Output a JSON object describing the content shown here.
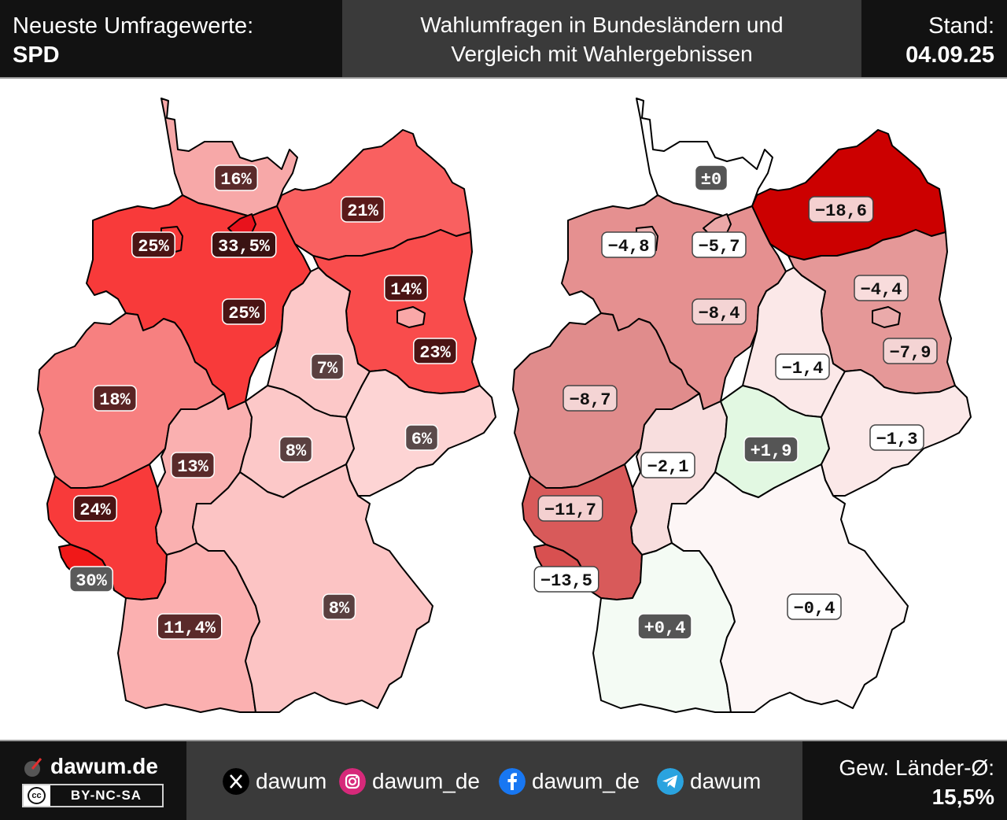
{
  "header": {
    "left_line1": "Neueste Umfragewerte:",
    "left_line2": "SPD",
    "center_line1": "Wahlumfragen in Bundesländern und",
    "center_line2": "Vergleich mit Wahlergebnissen",
    "right_line1": "Stand:",
    "right_line2": "04.09.25"
  },
  "left_map": {
    "states": [
      {
        "id": "SH",
        "label": "16%",
        "fill": "#f7a8a8",
        "badge": "#5a2a2a",
        "text": "#ffffff"
      },
      {
        "id": "HH",
        "label": "33,5%",
        "fill": "#e8121c",
        "badge": "#3a1212",
        "text": "#ffffff"
      },
      {
        "id": "MV",
        "label": "21%",
        "fill": "#f96060",
        "badge": "#5a1a1a",
        "text": "#ffffff"
      },
      {
        "id": "HB",
        "label": "25%",
        "fill": "#f83a3a",
        "badge": "#4a1414",
        "text": "#ffffff"
      },
      {
        "id": "NI",
        "label": "25%",
        "fill": "#f83a3a",
        "badge": "#4a1414",
        "text": "#ffffff"
      },
      {
        "id": "BB",
        "label": "23%",
        "fill": "#f94c4c",
        "badge": "#4a1414",
        "text": "#ffffff"
      },
      {
        "id": "BE",
        "label": "14%",
        "fill": "#f9a8a8",
        "badge": "#4a1414",
        "text": "#ffffff"
      },
      {
        "id": "ST",
        "label": "7%",
        "fill": "#fcc8c8",
        "badge": "#5a4040",
        "text": "#ffffff"
      },
      {
        "id": "NW",
        "label": "18%",
        "fill": "#f78080",
        "badge": "#5a2424",
        "text": "#ffffff"
      },
      {
        "id": "HE",
        "label": "13%",
        "fill": "#fab0b0",
        "badge": "#5a2a2a",
        "text": "#ffffff"
      },
      {
        "id": "TH",
        "label": "8%",
        "fill": "#fcc8c8",
        "badge": "#5a4040",
        "text": "#ffffff"
      },
      {
        "id": "SN",
        "label": "6%",
        "fill": "#fdd4d4",
        "badge": "#5a4a4a",
        "text": "#ffffff"
      },
      {
        "id": "RP",
        "label": "24%",
        "fill": "#f83a3a",
        "badge": "#4a1414",
        "text": "#ffffff"
      },
      {
        "id": "SL",
        "label": "30%",
        "fill": "#f01818",
        "badge": "#5a5a5a",
        "text": "#ffffff"
      },
      {
        "id": "BW",
        "label": "11,4%",
        "fill": "#fbb0b0",
        "badge": "#5a2a2a",
        "text": "#ffffff"
      },
      {
        "id": "BY",
        "label": "8%",
        "fill": "#fcc4c4",
        "badge": "#5a4040",
        "text": "#ffffff"
      }
    ]
  },
  "right_map": {
    "states": [
      {
        "id": "SH",
        "label": "±0",
        "fill": "#ffffff",
        "badge": "#555555",
        "text": "#ffffff"
      },
      {
        "id": "HH",
        "label": "−5,7",
        "fill": "#eba8a8",
        "badge": "#ffffff",
        "text": "#111111"
      },
      {
        "id": "MV",
        "label": "−18,6",
        "fill": "#cc0000",
        "badge": "#f4d0d0",
        "text": "#111111"
      },
      {
        "id": "HB",
        "label": "−4,8",
        "fill": "#ebb0b0",
        "badge": "#ffffff",
        "text": "#111111"
      },
      {
        "id": "NI",
        "label": "−8,4",
        "fill": "#e59090",
        "badge": "#f4d4d4",
        "text": "#111111"
      },
      {
        "id": "BB",
        "label": "−7,9",
        "fill": "#e59898",
        "badge": "#f4d4d4",
        "text": "#111111"
      },
      {
        "id": "BE",
        "label": "−4,4",
        "fill": "#eaaaaa",
        "badge": "#f8dcdc",
        "text": "#111111"
      },
      {
        "id": "ST",
        "label": "−1,4",
        "fill": "#fbe8e8",
        "badge": "#ffffff",
        "text": "#111111"
      },
      {
        "id": "NW",
        "label": "−8,7",
        "fill": "#e08c8c",
        "badge": "#f4d4d4",
        "text": "#111111"
      },
      {
        "id": "HE",
        "label": "−2,1",
        "fill": "#f8dede",
        "badge": "#ffffff",
        "text": "#111111"
      },
      {
        "id": "TH",
        "label": "+1,9",
        "fill": "#e2f8e2",
        "badge": "#555555",
        "text": "#ffffff"
      },
      {
        "id": "SN",
        "label": "−1,3",
        "fill": "#fbe8e8",
        "badge": "#ffffff",
        "text": "#111111"
      },
      {
        "id": "RP",
        "label": "−11,7",
        "fill": "#d85a5a",
        "badge": "#f4d0d0",
        "text": "#111111"
      },
      {
        "id": "SL",
        "label": "−13,5",
        "fill": "#d85050",
        "badge": "#ffffff",
        "text": "#111111"
      },
      {
        "id": "BW",
        "label": "+0,4",
        "fill": "#f4fbf4",
        "badge": "#555555",
        "text": "#ffffff"
      },
      {
        "id": "BY",
        "label": "−0,4",
        "fill": "#fdf6f6",
        "badge": "#ffffff",
        "text": "#111111"
      }
    ]
  },
  "footer": {
    "brand": "dawum.de",
    "license": "BY-NC-SA",
    "license_icon": "cc",
    "social": [
      {
        "icon": "x-icon",
        "label": "dawum",
        "color": "#000000"
      },
      {
        "icon": "instagram-icon",
        "label": "dawum_de",
        "color": "#d6297a"
      },
      {
        "icon": "facebook-icon",
        "label": "dawum_de",
        "color": "#1877f2"
      },
      {
        "icon": "telegram-icon",
        "label": "dawum",
        "color": "#2aa3df"
      }
    ],
    "right_line1": "Gew. Länder-Ø:",
    "right_line2": "15,5%"
  }
}
